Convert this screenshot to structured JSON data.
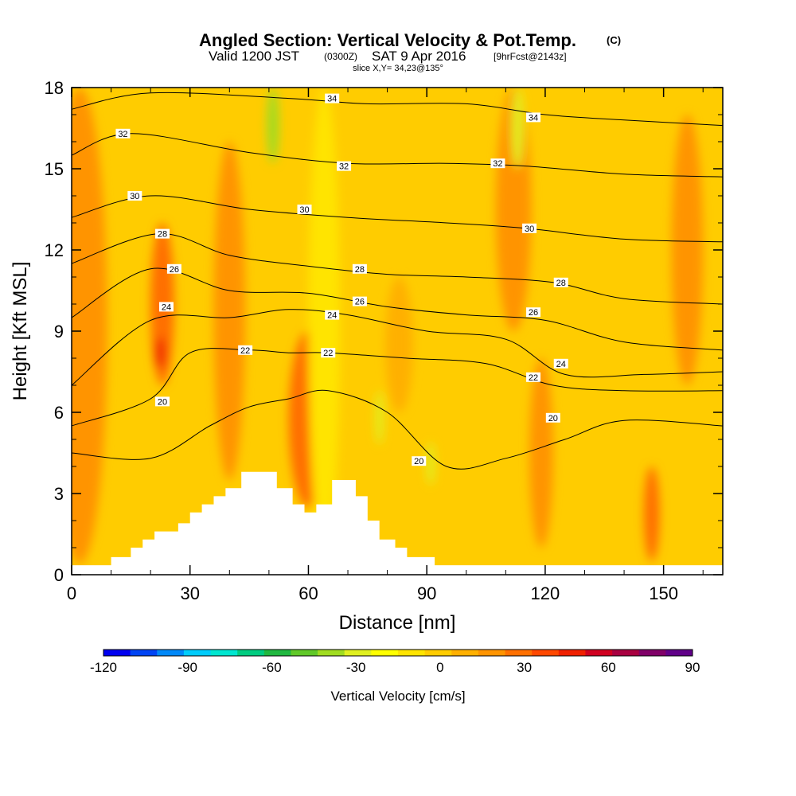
{
  "chart_data": {
    "type": "heatmap",
    "title": "Angled Section: Vertical Velocity & Pot.Temp.",
    "title_mark": "(C)",
    "subtitle": {
      "valid": "Valid 1200 JST",
      "utc": "(0300Z)",
      "date": "SAT 9 Apr 2016",
      "forecast": "[9hrFcst@2143z]"
    },
    "slice_label": "slice X,Y= 34,23@135°",
    "xlabel": "Distance [nm]",
    "ylabel": "Height [Kft MSL]",
    "xlim": [
      0,
      165
    ],
    "ylim": [
      0,
      18
    ],
    "x_ticks": [
      "0",
      "30",
      "60",
      "90",
      "120",
      "150"
    ],
    "x_tick_values": [
      0,
      30,
      60,
      90,
      120,
      150
    ],
    "y_ticks": [
      "0",
      "3",
      "6",
      "9",
      "12",
      "15",
      "18"
    ],
    "y_tick_values": [
      0,
      3,
      6,
      9,
      12,
      15,
      18
    ],
    "grid": false,
    "colorbar": {
      "label": "Vertical Velocity [cm/s]",
      "ticks": [
        "-120",
        "-90",
        "-60",
        "-30",
        "0",
        "30",
        "60",
        "90"
      ],
      "tick_values": [
        -120,
        -90,
        -60,
        -30,
        0,
        30,
        60,
        90
      ],
      "colors": [
        "#0000f0",
        "#0044f4",
        "#0088f8",
        "#00ccfc",
        "#00e6d0",
        "#00cc80",
        "#20b840",
        "#60c828",
        "#a0dc20",
        "#e0f020",
        "#ffff00",
        "#ffe400",
        "#ffcc00",
        "#ffb000",
        "#ff9400",
        "#ff7000",
        "#ff4800",
        "#f02000",
        "#d00020",
        "#a80040",
        "#800068",
        "#600088"
      ]
    },
    "terrain": [
      [
        0,
        0.35
      ],
      [
        10,
        0.35
      ],
      [
        10,
        0.65
      ],
      [
        15,
        0.65
      ],
      [
        15,
        1.0
      ],
      [
        18,
        1.0
      ],
      [
        18,
        1.3
      ],
      [
        21,
        1.3
      ],
      [
        21,
        1.6
      ],
      [
        27,
        1.6
      ],
      [
        27,
        1.9
      ],
      [
        30,
        1.9
      ],
      [
        30,
        2.3
      ],
      [
        33,
        2.3
      ],
      [
        33,
        2.6
      ],
      [
        36,
        2.6
      ],
      [
        36,
        2.9
      ],
      [
        39,
        2.9
      ],
      [
        39,
        3.2
      ],
      [
        43,
        3.2
      ],
      [
        43,
        3.8
      ],
      [
        52,
        3.8
      ],
      [
        52,
        3.2
      ],
      [
        56,
        3.2
      ],
      [
        56,
        2.6
      ],
      [
        59,
        2.6
      ],
      [
        59,
        2.3
      ],
      [
        62,
        2.3
      ],
      [
        62,
        2.6
      ],
      [
        66,
        2.6
      ],
      [
        66,
        3.5
      ],
      [
        72,
        3.5
      ],
      [
        72,
        2.9
      ],
      [
        75,
        2.9
      ],
      [
        75,
        2.0
      ],
      [
        78,
        2.0
      ],
      [
        78,
        1.3
      ],
      [
        82,
        1.3
      ],
      [
        82,
        1.0
      ],
      [
        85,
        1.0
      ],
      [
        85,
        0.65
      ],
      [
        92,
        0.65
      ],
      [
        92,
        0.35
      ],
      [
        165,
        0.35
      ]
    ],
    "velocity_field": [
      {
        "x": 2,
        "w": 14,
        "y0": 0.4,
        "y1": 18,
        "value": 20
      },
      {
        "x": 23,
        "w": 6,
        "y0": 7,
        "y1": 13,
        "value": 30
      },
      {
        "x": 22.5,
        "w": 2.5,
        "y0": 7.6,
        "y1": 8.8,
        "value": 45
      },
      {
        "x": 60,
        "w": 10,
        "y0": 2.5,
        "y1": 9,
        "value": 30
      },
      {
        "x": 65,
        "w": 3,
        "y0": 3,
        "y1": 6,
        "value": 35
      },
      {
        "x": 40,
        "w": 8,
        "y0": 3.5,
        "y1": 16,
        "value": 15
      },
      {
        "x": 112,
        "w": 9,
        "y0": 9,
        "y1": 18,
        "value": 20
      },
      {
        "x": 119,
        "w": 6,
        "y0": 1,
        "y1": 8,
        "value": 20
      },
      {
        "x": 147,
        "w": 4,
        "y0": 0.5,
        "y1": 4,
        "value": 30
      },
      {
        "x": 156,
        "w": 8,
        "y0": 7,
        "y1": 17,
        "value": 15
      },
      {
        "x": 83,
        "w": 7,
        "y0": 6,
        "y1": 11,
        "value": 12
      },
      {
        "x": 64,
        "w": 8,
        "y0": 0.5,
        "y1": 18,
        "value": -15
      },
      {
        "x": 51,
        "w": 3,
        "y0": 15.2,
        "y1": 18,
        "value": -35
      },
      {
        "x": 113,
        "w": 3,
        "y0": 15,
        "y1": 18,
        "value": -25
      },
      {
        "x": 78,
        "w": 2,
        "y0": 4.8,
        "y1": 6.8,
        "value": -30
      },
      {
        "x": 91,
        "w": 2,
        "y0": 3.3,
        "y1": 4.9,
        "value": -30
      }
    ],
    "contours": [
      {
        "label": "20",
        "points": [
          [
            0,
            4.5
          ],
          [
            20,
            4.3
          ],
          [
            35,
            5.5
          ],
          [
            45,
            6.2
          ],
          [
            55,
            6.5
          ],
          [
            65,
            6.8
          ],
          [
            80,
            6.0
          ],
          [
            95,
            4.0
          ],
          [
            110,
            4.3
          ],
          [
            125,
            5.0
          ],
          [
            140,
            5.7
          ],
          [
            165,
            5.5
          ]
        ]
      },
      {
        "label": "22",
        "points": [
          [
            0,
            5.5
          ],
          [
            20,
            6.5
          ],
          [
            30,
            8.2
          ],
          [
            45,
            8.3
          ],
          [
            55,
            8.2
          ],
          [
            65,
            8.2
          ],
          [
            85,
            8.0
          ],
          [
            105,
            7.8
          ],
          [
            122,
            7.0
          ],
          [
            140,
            6.8
          ],
          [
            165,
            6.8
          ]
        ]
      },
      {
        "label": "24",
        "points": [
          [
            0,
            7.0
          ],
          [
            20,
            9.4
          ],
          [
            40,
            9.5
          ],
          [
            55,
            9.8
          ],
          [
            70,
            9.6
          ],
          [
            90,
            9.0
          ],
          [
            110,
            8.7
          ],
          [
            125,
            7.4
          ],
          [
            145,
            7.4
          ],
          [
            165,
            7.5
          ]
        ]
      },
      {
        "label": "26",
        "points": [
          [
            0,
            9.5
          ],
          [
            20,
            11.3
          ],
          [
            40,
            10.5
          ],
          [
            60,
            10.4
          ],
          [
            80,
            9.9
          ],
          [
            100,
            9.6
          ],
          [
            120,
            9.4
          ],
          [
            140,
            8.6
          ],
          [
            165,
            8.3
          ]
        ]
      },
      {
        "label": "28",
        "points": [
          [
            0,
            11.5
          ],
          [
            22,
            12.6
          ],
          [
            40,
            11.8
          ],
          [
            60,
            11.4
          ],
          [
            80,
            11.1
          ],
          [
            100,
            11.0
          ],
          [
            122,
            10.8
          ],
          [
            140,
            10.2
          ],
          [
            165,
            10.0
          ]
        ]
      },
      {
        "label": "30",
        "points": [
          [
            0,
            13.2
          ],
          [
            20,
            14.0
          ],
          [
            45,
            13.5
          ],
          [
            70,
            13.2
          ],
          [
            95,
            13.0
          ],
          [
            115,
            12.8
          ],
          [
            140,
            12.4
          ],
          [
            165,
            12.3
          ]
        ]
      },
      {
        "label": "32",
        "points": [
          [
            0,
            15.5
          ],
          [
            15,
            16.3
          ],
          [
            45,
            15.6
          ],
          [
            70,
            15.2
          ],
          [
            95,
            15.2
          ],
          [
            115,
            15.1
          ],
          [
            140,
            14.8
          ],
          [
            165,
            14.7
          ]
        ]
      },
      {
        "label": "34",
        "points": [
          [
            0,
            17.2
          ],
          [
            20,
            17.8
          ],
          [
            55,
            17.6
          ],
          [
            75,
            17.4
          ],
          [
            100,
            17.4
          ],
          [
            120,
            17.0
          ],
          [
            140,
            16.8
          ],
          [
            165,
            16.6
          ]
        ]
      }
    ],
    "contour_labels": [
      {
        "text": "20",
        "x": 23,
        "y": 6.4
      },
      {
        "text": "20",
        "x": 88,
        "y": 4.2
      },
      {
        "text": "20",
        "x": 122,
        "y": 5.8
      },
      {
        "text": "22",
        "x": 44,
        "y": 8.3
      },
      {
        "text": "22",
        "x": 65,
        "y": 8.2
      },
      {
        "text": "22",
        "x": 117,
        "y": 7.3
      },
      {
        "text": "24",
        "x": 24,
        "y": 9.9
      },
      {
        "text": "24",
        "x": 66,
        "y": 9.6
      },
      {
        "text": "24",
        "x": 124,
        "y": 7.8
      },
      {
        "text": "26",
        "x": 26,
        "y": 11.3
      },
      {
        "text": "26",
        "x": 73,
        "y": 10.1
      },
      {
        "text": "26",
        "x": 117,
        "y": 9.7
      },
      {
        "text": "28",
        "x": 23,
        "y": 12.6
      },
      {
        "text": "28",
        "x": 73,
        "y": 11.3
      },
      {
        "text": "28",
        "x": 124,
        "y": 10.8
      },
      {
        "text": "30",
        "x": 16,
        "y": 14.0
      },
      {
        "text": "30",
        "x": 59,
        "y": 13.5
      },
      {
        "text": "30",
        "x": 116,
        "y": 12.8
      },
      {
        "text": "32",
        "x": 13,
        "y": 16.3
      },
      {
        "text": "32",
        "x": 69,
        "y": 15.1
      },
      {
        "text": "32",
        "x": 108,
        "y": 15.2
      },
      {
        "text": "34",
        "x": 66,
        "y": 17.6
      },
      {
        "text": "34",
        "x": 117,
        "y": 16.9
      }
    ]
  },
  "colors": {
    "background_field": "#ffcc00",
    "terrain": "#ffffff",
    "contour": "#000000"
  }
}
